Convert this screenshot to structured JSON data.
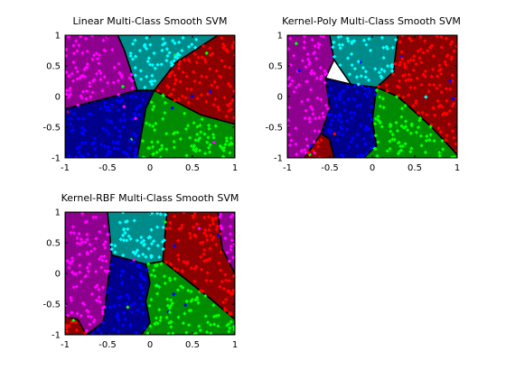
{
  "figure": {
    "background": "#ffffff"
  },
  "chart_data": [
    {
      "type": "scatter",
      "title": "Linear Multi-Class Smooth SVM",
      "xlabel": "",
      "ylabel": "",
      "xlim": [
        -1,
        1
      ],
      "ylim": [
        -1,
        1
      ],
      "xticks": [
        -1,
        -0.5,
        0,
        0.5,
        1
      ],
      "yticks": [
        1,
        0.5,
        0,
        -0.5,
        -1
      ],
      "grid": false,
      "region_colors": {
        "magenta": "#8e008e",
        "cyan": "#008b8b",
        "red": "#8b0000",
        "blue": "#00008b",
        "green": "#008b00"
      },
      "point_colors": {
        "magenta": "#ff00ff",
        "cyan": "#00ffff",
        "red": "#ff0000",
        "blue": "#0000ff",
        "green": "#00ff00"
      },
      "regions": [
        {
          "class": "magenta",
          "polygon": [
            [
              -1,
              1
            ],
            [
              -0.38,
              1
            ],
            [
              -0.3,
              0.75
            ],
            [
              -0.15,
              0.1
            ],
            [
              -1,
              -0.2
            ]
          ]
        },
        {
          "class": "cyan",
          "polygon": [
            [
              -0.38,
              1
            ],
            [
              0.8,
              1
            ],
            [
              0.3,
              0.55
            ],
            [
              0.05,
              0.1
            ],
            [
              -0.15,
              0.1
            ],
            [
              -0.3,
              0.75
            ]
          ]
        },
        {
          "class": "red",
          "polygon": [
            [
              0.8,
              1
            ],
            [
              1,
              1
            ],
            [
              1,
              -0.45
            ],
            [
              0.6,
              -0.3
            ],
            [
              0.05,
              0.1
            ],
            [
              0.3,
              0.55
            ]
          ]
        },
        {
          "class": "blue",
          "polygon": [
            [
              -1,
              -0.2
            ],
            [
              -0.15,
              0.1
            ],
            [
              0.05,
              0.1
            ],
            [
              -0.05,
              -0.2
            ],
            [
              -0.15,
              -1
            ],
            [
              -1,
              -1
            ]
          ]
        },
        {
          "class": "green",
          "polygon": [
            [
              0.05,
              0.1
            ],
            [
              0.6,
              -0.3
            ],
            [
              1,
              -0.45
            ],
            [
              1,
              -1
            ],
            [
              -0.15,
              -1
            ],
            [
              -0.05,
              -0.2
            ]
          ]
        }
      ]
    },
    {
      "type": "scatter",
      "title": "Kernel-Poly Multi-Class Smooth SVM",
      "xlabel": "",
      "ylabel": "",
      "xlim": [
        -1,
        1
      ],
      "ylim": [
        -1,
        1
      ],
      "xticks": [
        -1,
        -0.5,
        0,
        0.5,
        1
      ],
      "yticks": [
        1,
        0.5,
        0,
        -0.5,
        -1
      ],
      "grid": false,
      "region_colors": {
        "magenta": "#8e008e",
        "cyan": "#008b8b",
        "red": "#8b0000",
        "blue": "#00008b",
        "green": "#008b00"
      },
      "point_colors": {
        "magenta": "#ff00ff",
        "cyan": "#00ffff",
        "red": "#ff0000",
        "blue": "#0000ff",
        "green": "#00ff00"
      },
      "regions": [
        {
          "class": "magenta",
          "polygon": [
            [
              -1,
              1
            ],
            [
              -0.5,
              1
            ],
            [
              -0.45,
              0.6
            ],
            [
              -0.55,
              0.3
            ],
            [
              -0.5,
              -0.2
            ],
            [
              -0.6,
              -0.6
            ],
            [
              -0.8,
              -1
            ],
            [
              -1,
              -1
            ]
          ]
        },
        {
          "class": "cyan",
          "polygon": [
            [
              -0.5,
              1
            ],
            [
              0.3,
              1
            ],
            [
              0.25,
              0.4
            ],
            [
              0.05,
              0.15
            ],
            [
              -0.25,
              0.2
            ],
            [
              -0.45,
              0.6
            ]
          ]
        },
        {
          "class": "red",
          "polygon": [
            [
              0.3,
              1
            ],
            [
              1,
              1
            ],
            [
              1,
              -0.95
            ],
            [
              0.7,
              -0.5
            ],
            [
              0.3,
              0.0
            ],
            [
              0.05,
              0.15
            ],
            [
              0.25,
              0.4
            ]
          ]
        },
        {
          "class": "red",
          "polygon": [
            [
              -0.8,
              -1
            ],
            [
              -0.6,
              -0.6
            ],
            [
              -0.5,
              -0.7
            ],
            [
              -0.45,
              -1
            ]
          ]
        },
        {
          "class": "blue",
          "polygon": [
            [
              -0.55,
              0.3
            ],
            [
              -0.25,
              0.2
            ],
            [
              0.05,
              0.15
            ],
            [
              0.0,
              -0.4
            ],
            [
              0.05,
              -0.8
            ],
            [
              -0.1,
              -1
            ],
            [
              -0.45,
              -1
            ],
            [
              -0.5,
              -0.7
            ],
            [
              -0.6,
              -0.6
            ],
            [
              -0.5,
              -0.2
            ]
          ]
        },
        {
          "class": "green",
          "polygon": [
            [
              0.05,
              0.15
            ],
            [
              0.3,
              0.0
            ],
            [
              0.7,
              -0.5
            ],
            [
              1,
              -0.95
            ],
            [
              1,
              -1
            ],
            [
              -0.1,
              -1
            ],
            [
              0.05,
              -0.8
            ],
            [
              0.0,
              -0.4
            ]
          ]
        }
      ]
    },
    {
      "type": "scatter",
      "title": "Kernel-RBF Multi-Class Smooth SVM",
      "xlabel": "",
      "ylabel": "",
      "xlim": [
        -1,
        1
      ],
      "ylim": [
        -1,
        1
      ],
      "xticks": [
        -1,
        -0.5,
        0,
        0.5,
        1
      ],
      "yticks": [
        1,
        0.5,
        0,
        -0.5,
        -1
      ],
      "grid": false,
      "region_colors": {
        "magenta": "#8e008e",
        "cyan": "#008b8b",
        "red": "#8b0000",
        "blue": "#00008b",
        "green": "#008b00"
      },
      "point_colors": {
        "magenta": "#ff00ff",
        "cyan": "#00ffff",
        "red": "#ff0000",
        "blue": "#0000ff",
        "green": "#00ff00"
      },
      "regions": [
        {
          "class": "magenta",
          "polygon": [
            [
              -1,
              1
            ],
            [
              -0.5,
              1
            ],
            [
              -0.45,
              0.3
            ],
            [
              -0.5,
              -0.2
            ],
            [
              -0.55,
              -0.8
            ],
            [
              -0.75,
              -1
            ],
            [
              -1,
              -1
            ]
          ]
        },
        {
          "class": "cyan",
          "polygon": [
            [
              -0.5,
              1
            ],
            [
              0.2,
              1
            ],
            [
              0.15,
              0.2
            ],
            [
              -0.05,
              0.15
            ],
            [
              -0.45,
              0.3
            ]
          ]
        },
        {
          "class": "red",
          "polygon": [
            [
              0.2,
              1
            ],
            [
              0.8,
              1
            ],
            [
              0.85,
              0.4
            ],
            [
              1,
              0.0
            ],
            [
              1,
              -0.75
            ],
            [
              0.7,
              -0.4
            ],
            [
              0.15,
              0.2
            ]
          ]
        },
        {
          "class": "magenta",
          "polygon": [
            [
              0.8,
              1
            ],
            [
              1,
              1
            ],
            [
              1,
              0.0
            ],
            [
              0.85,
              0.4
            ]
          ]
        },
        {
          "class": "red",
          "polygon": [
            [
              -1,
              -0.7
            ],
            [
              -0.85,
              -0.75
            ],
            [
              -0.75,
              -1
            ],
            [
              -1,
              -1
            ]
          ]
        },
        {
          "class": "blue",
          "polygon": [
            [
              -0.45,
              0.3
            ],
            [
              -0.05,
              0.15
            ],
            [
              0.0,
              -0.15
            ],
            [
              -0.05,
              -0.45
            ],
            [
              0.0,
              -0.8
            ],
            [
              -0.1,
              -1
            ],
            [
              -0.75,
              -1
            ],
            [
              -0.55,
              -0.8
            ],
            [
              -0.5,
              -0.2
            ]
          ]
        },
        {
          "class": "green",
          "polygon": [
            [
              -0.05,
              0.15
            ],
            [
              0.15,
              0.2
            ],
            [
              0.7,
              -0.4
            ],
            [
              1,
              -0.75
            ],
            [
              1,
              -1
            ],
            [
              -0.1,
              -1
            ],
            [
              0.0,
              -0.8
            ],
            [
              -0.05,
              -0.45
            ],
            [
              0.0,
              -0.15
            ]
          ]
        }
      ]
    }
  ]
}
